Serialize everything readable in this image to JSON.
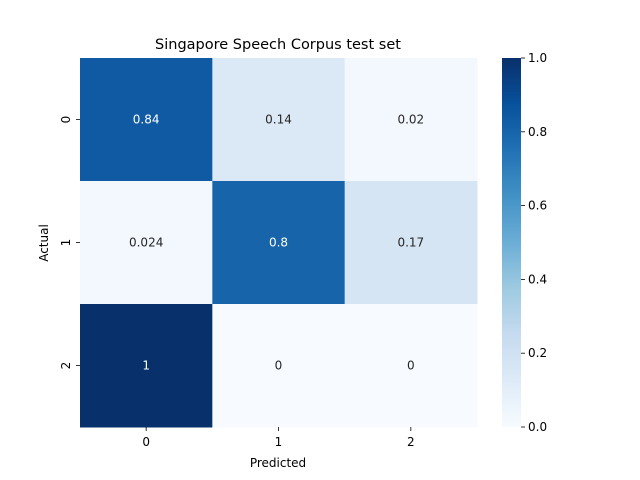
{
  "chart_data": {
    "type": "heatmap",
    "title": "Singapore Speech Corpus test set",
    "xlabel": "Predicted",
    "ylabel": "Actual",
    "x_categories": [
      "0",
      "1",
      "2"
    ],
    "y_categories": [
      "0",
      "1",
      "2"
    ],
    "values": [
      [
        0.84,
        0.14,
        0.02
      ],
      [
        0.024,
        0.8,
        0.17
      ],
      [
        1,
        0,
        0
      ]
    ],
    "value_labels": [
      [
        "0.84",
        "0.14",
        "0.02"
      ],
      [
        "0.024",
        "0.8",
        "0.17"
      ],
      [
        "1",
        "0",
        "0"
      ]
    ],
    "colormap": "Blues",
    "vmin": 0.0,
    "vmax": 1.0,
    "colorbar_ticks": [
      "0.0",
      "0.2",
      "0.4",
      "0.6",
      "0.8",
      "1.0"
    ],
    "colors": {
      "low": "#f7fbff",
      "high": "#08306b"
    }
  }
}
